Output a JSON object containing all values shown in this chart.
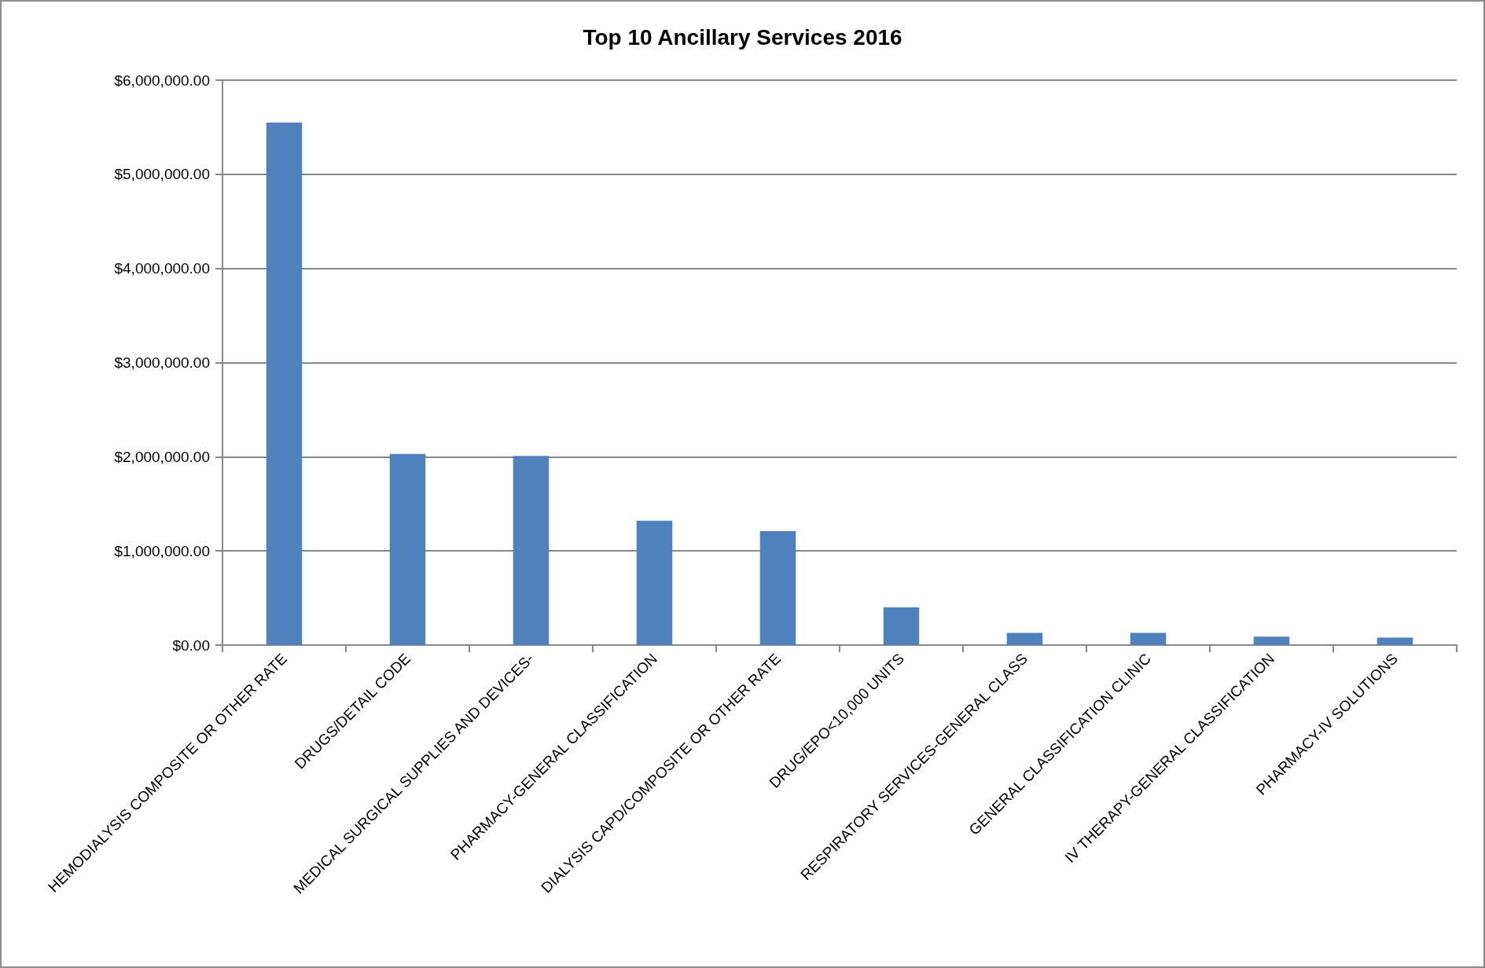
{
  "chart_data": {
    "type": "bar",
    "title": "Top 10 Ancillary Services 2016",
    "categories": [
      "HEMODIALYSIS COMPOSITE OR OTHER RATE",
      "DRUGS/DETAIL CODE",
      "MEDICAL SURGICAL SUPPLIES AND DEVICES-",
      "PHARMACY-GENERAL CLASSIFICATION",
      "DIALYSIS CAPD/COMPOSITE OR OTHER RATE",
      "DRUG/EPO<10,000 UNITS",
      "RESPIRATORY SERVICES-GENERAL CLASS",
      "GENERAL CLASSIFICATION CLINIC",
      "IV THERAPY-GENERAL CLASSIFICATION",
      "PHARMACY-IV SOLUTIONS"
    ],
    "values": [
      5550000,
      2030000,
      2010000,
      1320000,
      1210000,
      400000,
      130000,
      130000,
      90000,
      80000
    ],
    "color": "#4f81bd",
    "ylim": [
      0,
      6000000
    ],
    "yticks": [
      {
        "value": 0,
        "label": "$0.00"
      },
      {
        "value": 1000000,
        "label": "$1,000,000.00"
      },
      {
        "value": 2000000,
        "label": "$2,000,000.00"
      },
      {
        "value": 3000000,
        "label": "$3,000,000.00"
      },
      {
        "value": 4000000,
        "label": "$4,000,000.00"
      },
      {
        "value": 5000000,
        "label": "$5,000,000.00"
      },
      {
        "value": 6000000,
        "label": "$6,000,000.00"
      }
    ],
    "grid": "y"
  }
}
